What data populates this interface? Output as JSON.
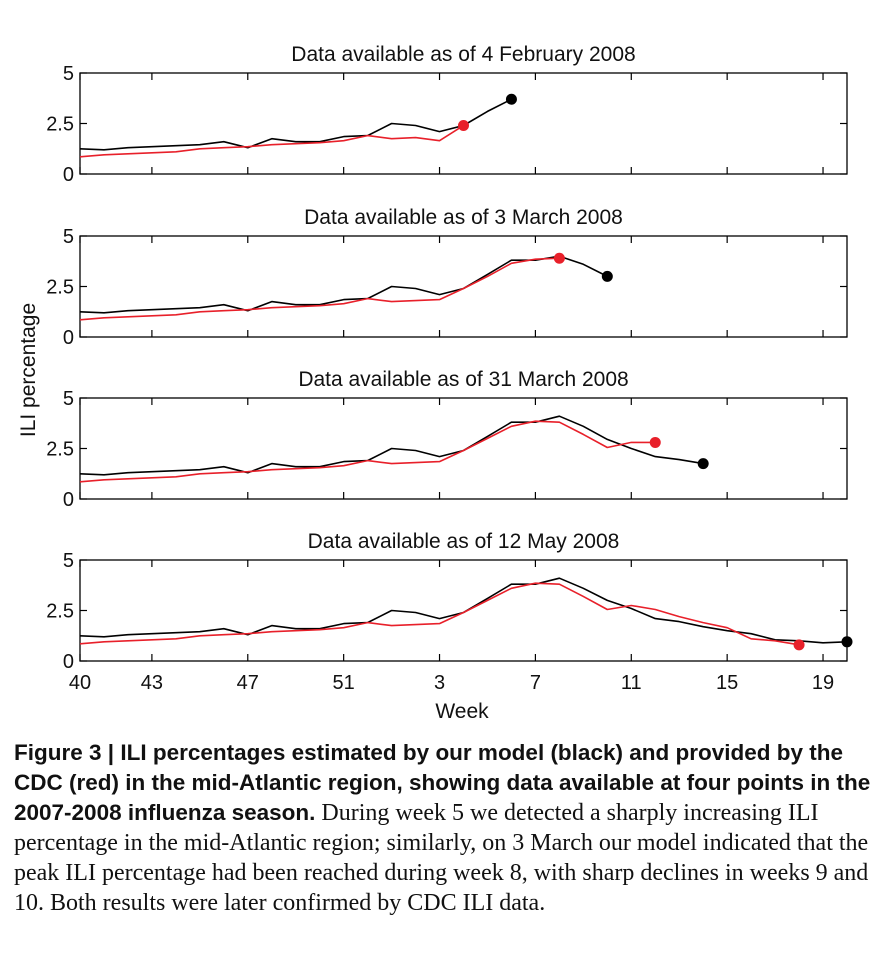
{
  "chart_data": {
    "type": "line",
    "ylabel": "ILI percentage",
    "xlabel": "Week",
    "ylim": [
      0,
      5
    ],
    "yticks": [
      "0",
      "2.5",
      "5"
    ],
    "xticks": [
      "40",
      "43",
      "47",
      "51",
      "3",
      "7",
      "11",
      "15",
      "19"
    ],
    "series_colors": {
      "model": "#000000",
      "cdc": "#e8202a"
    },
    "panels": [
      {
        "title": "Data available as of 4 February 2008",
        "model": [
          [
            40,
            1.25
          ],
          [
            41,
            1.2
          ],
          [
            42,
            1.3
          ],
          [
            43,
            1.35
          ],
          [
            44,
            1.4
          ],
          [
            45,
            1.45
          ],
          [
            46,
            1.6
          ],
          [
            47,
            1.3
          ],
          [
            48,
            1.75
          ],
          [
            49,
            1.6
          ],
          [
            50,
            1.6
          ],
          [
            51,
            1.85
          ],
          [
            52,
            1.9
          ],
          [
            1,
            2.5
          ],
          [
            2,
            2.4
          ],
          [
            3,
            2.1
          ],
          [
            4,
            2.4
          ],
          [
            5,
            3.1
          ],
          [
            6,
            3.7
          ]
        ],
        "cdc": [
          [
            40,
            0.85
          ],
          [
            41,
            0.95
          ],
          [
            42,
            1.0
          ],
          [
            43,
            1.05
          ],
          [
            44,
            1.1
          ],
          [
            45,
            1.25
          ],
          [
            46,
            1.3
          ],
          [
            47,
            1.35
          ],
          [
            48,
            1.45
          ],
          [
            49,
            1.5
          ],
          [
            50,
            1.55
          ],
          [
            51,
            1.65
          ],
          [
            52,
            1.9
          ],
          [
            1,
            1.75
          ],
          [
            2,
            1.8
          ],
          [
            3,
            1.65
          ],
          [
            4,
            2.4
          ]
        ]
      },
      {
        "title": "Data available as of 3 March 2008",
        "model": [
          [
            40,
            1.25
          ],
          [
            41,
            1.2
          ],
          [
            42,
            1.3
          ],
          [
            43,
            1.35
          ],
          [
            44,
            1.4
          ],
          [
            45,
            1.45
          ],
          [
            46,
            1.6
          ],
          [
            47,
            1.3
          ],
          [
            48,
            1.75
          ],
          [
            49,
            1.6
          ],
          [
            50,
            1.6
          ],
          [
            51,
            1.85
          ],
          [
            52,
            1.9
          ],
          [
            1,
            2.5
          ],
          [
            2,
            2.4
          ],
          [
            3,
            2.1
          ],
          [
            4,
            2.4
          ],
          [
            5,
            3.1
          ],
          [
            6,
            3.8
          ],
          [
            7,
            3.8
          ],
          [
            8,
            4.0
          ],
          [
            9,
            3.6
          ],
          [
            10,
            3.0
          ]
        ],
        "cdc": [
          [
            40,
            0.85
          ],
          [
            41,
            0.95
          ],
          [
            42,
            1.0
          ],
          [
            43,
            1.05
          ],
          [
            44,
            1.1
          ],
          [
            45,
            1.25
          ],
          [
            46,
            1.3
          ],
          [
            47,
            1.35
          ],
          [
            48,
            1.45
          ],
          [
            49,
            1.5
          ],
          [
            50,
            1.55
          ],
          [
            51,
            1.65
          ],
          [
            52,
            1.9
          ],
          [
            1,
            1.75
          ],
          [
            2,
            1.8
          ],
          [
            3,
            1.85
          ],
          [
            4,
            2.4
          ],
          [
            5,
            3.0
          ],
          [
            6,
            3.65
          ],
          [
            7,
            3.85
          ],
          [
            8,
            3.9
          ]
        ]
      },
      {
        "title": "Data available as of 31 March 2008",
        "model": [
          [
            40,
            1.25
          ],
          [
            41,
            1.2
          ],
          [
            42,
            1.3
          ],
          [
            43,
            1.35
          ],
          [
            44,
            1.4
          ],
          [
            45,
            1.45
          ],
          [
            46,
            1.6
          ],
          [
            47,
            1.3
          ],
          [
            48,
            1.75
          ],
          [
            49,
            1.6
          ],
          [
            50,
            1.6
          ],
          [
            51,
            1.85
          ],
          [
            52,
            1.9
          ],
          [
            1,
            2.5
          ],
          [
            2,
            2.4
          ],
          [
            3,
            2.1
          ],
          [
            4,
            2.4
          ],
          [
            5,
            3.1
          ],
          [
            6,
            3.8
          ],
          [
            7,
            3.8
          ],
          [
            8,
            4.1
          ],
          [
            9,
            3.6
          ],
          [
            10,
            2.95
          ],
          [
            11,
            2.5
          ],
          [
            12,
            2.1
          ],
          [
            13,
            1.95
          ],
          [
            14,
            1.75
          ]
        ],
        "cdc": [
          [
            40,
            0.85
          ],
          [
            41,
            0.95
          ],
          [
            42,
            1.0
          ],
          [
            43,
            1.05
          ],
          [
            44,
            1.1
          ],
          [
            45,
            1.25
          ],
          [
            46,
            1.3
          ],
          [
            47,
            1.35
          ],
          [
            48,
            1.45
          ],
          [
            49,
            1.5
          ],
          [
            50,
            1.55
          ],
          [
            51,
            1.65
          ],
          [
            52,
            1.9
          ],
          [
            1,
            1.75
          ],
          [
            2,
            1.8
          ],
          [
            3,
            1.85
          ],
          [
            4,
            2.4
          ],
          [
            5,
            3.0
          ],
          [
            6,
            3.6
          ],
          [
            7,
            3.85
          ],
          [
            8,
            3.8
          ],
          [
            9,
            3.2
          ],
          [
            10,
            2.55
          ],
          [
            11,
            2.8
          ],
          [
            12,
            2.8
          ]
        ]
      },
      {
        "title": "Data available as of 12 May 2008",
        "model": [
          [
            40,
            1.25
          ],
          [
            41,
            1.2
          ],
          [
            42,
            1.3
          ],
          [
            43,
            1.35
          ],
          [
            44,
            1.4
          ],
          [
            45,
            1.45
          ],
          [
            46,
            1.6
          ],
          [
            47,
            1.3
          ],
          [
            48,
            1.75
          ],
          [
            49,
            1.6
          ],
          [
            50,
            1.6
          ],
          [
            51,
            1.85
          ],
          [
            52,
            1.9
          ],
          [
            1,
            2.5
          ],
          [
            2,
            2.4
          ],
          [
            3,
            2.1
          ],
          [
            4,
            2.4
          ],
          [
            5,
            3.1
          ],
          [
            6,
            3.8
          ],
          [
            7,
            3.8
          ],
          [
            8,
            4.1
          ],
          [
            9,
            3.6
          ],
          [
            10,
            3.0
          ],
          [
            11,
            2.6
          ],
          [
            12,
            2.1
          ],
          [
            13,
            1.95
          ],
          [
            14,
            1.7
          ],
          [
            15,
            1.5
          ],
          [
            16,
            1.35
          ],
          [
            17,
            1.05
          ],
          [
            18,
            1.0
          ],
          [
            19,
            0.9
          ],
          [
            20,
            0.95
          ]
        ],
        "cdc": [
          [
            40,
            0.85
          ],
          [
            41,
            0.95
          ],
          [
            42,
            1.0
          ],
          [
            43,
            1.05
          ],
          [
            44,
            1.1
          ],
          [
            45,
            1.25
          ],
          [
            46,
            1.3
          ],
          [
            47,
            1.35
          ],
          [
            48,
            1.45
          ],
          [
            49,
            1.5
          ],
          [
            50,
            1.55
          ],
          [
            51,
            1.65
          ],
          [
            52,
            1.9
          ],
          [
            1,
            1.75
          ],
          [
            2,
            1.8
          ],
          [
            3,
            1.85
          ],
          [
            4,
            2.4
          ],
          [
            5,
            3.0
          ],
          [
            6,
            3.6
          ],
          [
            7,
            3.85
          ],
          [
            8,
            3.8
          ],
          [
            9,
            3.2
          ],
          [
            10,
            2.55
          ],
          [
            11,
            2.75
          ],
          [
            12,
            2.55
          ],
          [
            13,
            2.2
          ],
          [
            14,
            1.9
          ],
          [
            15,
            1.65
          ],
          [
            16,
            1.1
          ],
          [
            17,
            1.0
          ],
          [
            18,
            0.8
          ]
        ]
      }
    ]
  },
  "caption": {
    "label": "Figure 3 | ",
    "bold": "ILI percentages estimated by our model (black) and provided by the CDC (red) in the mid-Atlantic region, showing data available at four points in the 2007-2008 influenza season.",
    "text": " During week 5 we detected a sharply increasing ILI percentage in the mid-Atlantic region; similarly, on 3 March our model indicated that the peak ILI percentage had been reached during week 8, with sharp declines in weeks 9 and 10. Both results were later confirmed by CDC ILI data."
  }
}
